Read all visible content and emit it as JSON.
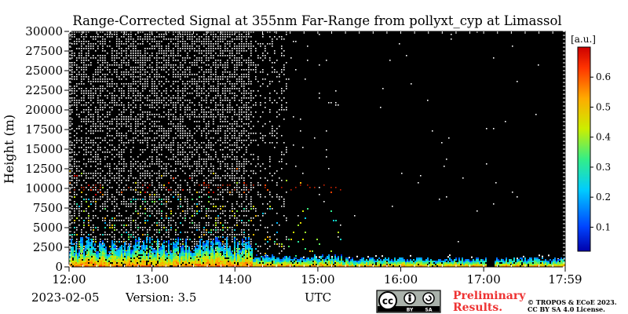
{
  "chart_data": {
    "type": "heatmap",
    "title": "Range-Corrected Signal at 355nm Far-Range from pollyxt_cyp at Limassol",
    "ylabel": "Height (m)",
    "xlabel": "UTC",
    "x_ticks": [
      "12:00",
      "13:00",
      "14:00",
      "15:00",
      "16:00",
      "17:00",
      "17:59"
    ],
    "y_ticks": [
      0,
      2500,
      5000,
      7500,
      10000,
      12500,
      15000,
      17500,
      20000,
      22500,
      25000,
      27500,
      30000
    ],
    "ylim": [
      0,
      30000
    ],
    "colorbar": {
      "unit": "[a.u.]",
      "ticks": [
        "0.1",
        "0.2",
        "0.3",
        "0.4",
        "0.5",
        "0.6"
      ],
      "range": [
        0.02,
        0.7
      ],
      "colormap": "jet"
    },
    "colors": {
      "no_signal": "#000000",
      "noise": "#ffffff",
      "high_signal": "#dd2200"
    }
  },
  "footer": {
    "date": "2023-02-05",
    "version": "Version: 3.5",
    "prelim_line1": "Preliminary",
    "prelim_line2": "Results.",
    "copyright_line1": "© TROPOS & ECoE 2023.",
    "copyright_line2": "CC BY SA 4.0 License.",
    "license_badge": {
      "cc": "cc",
      "by": "BY",
      "sa": "SA"
    }
  }
}
